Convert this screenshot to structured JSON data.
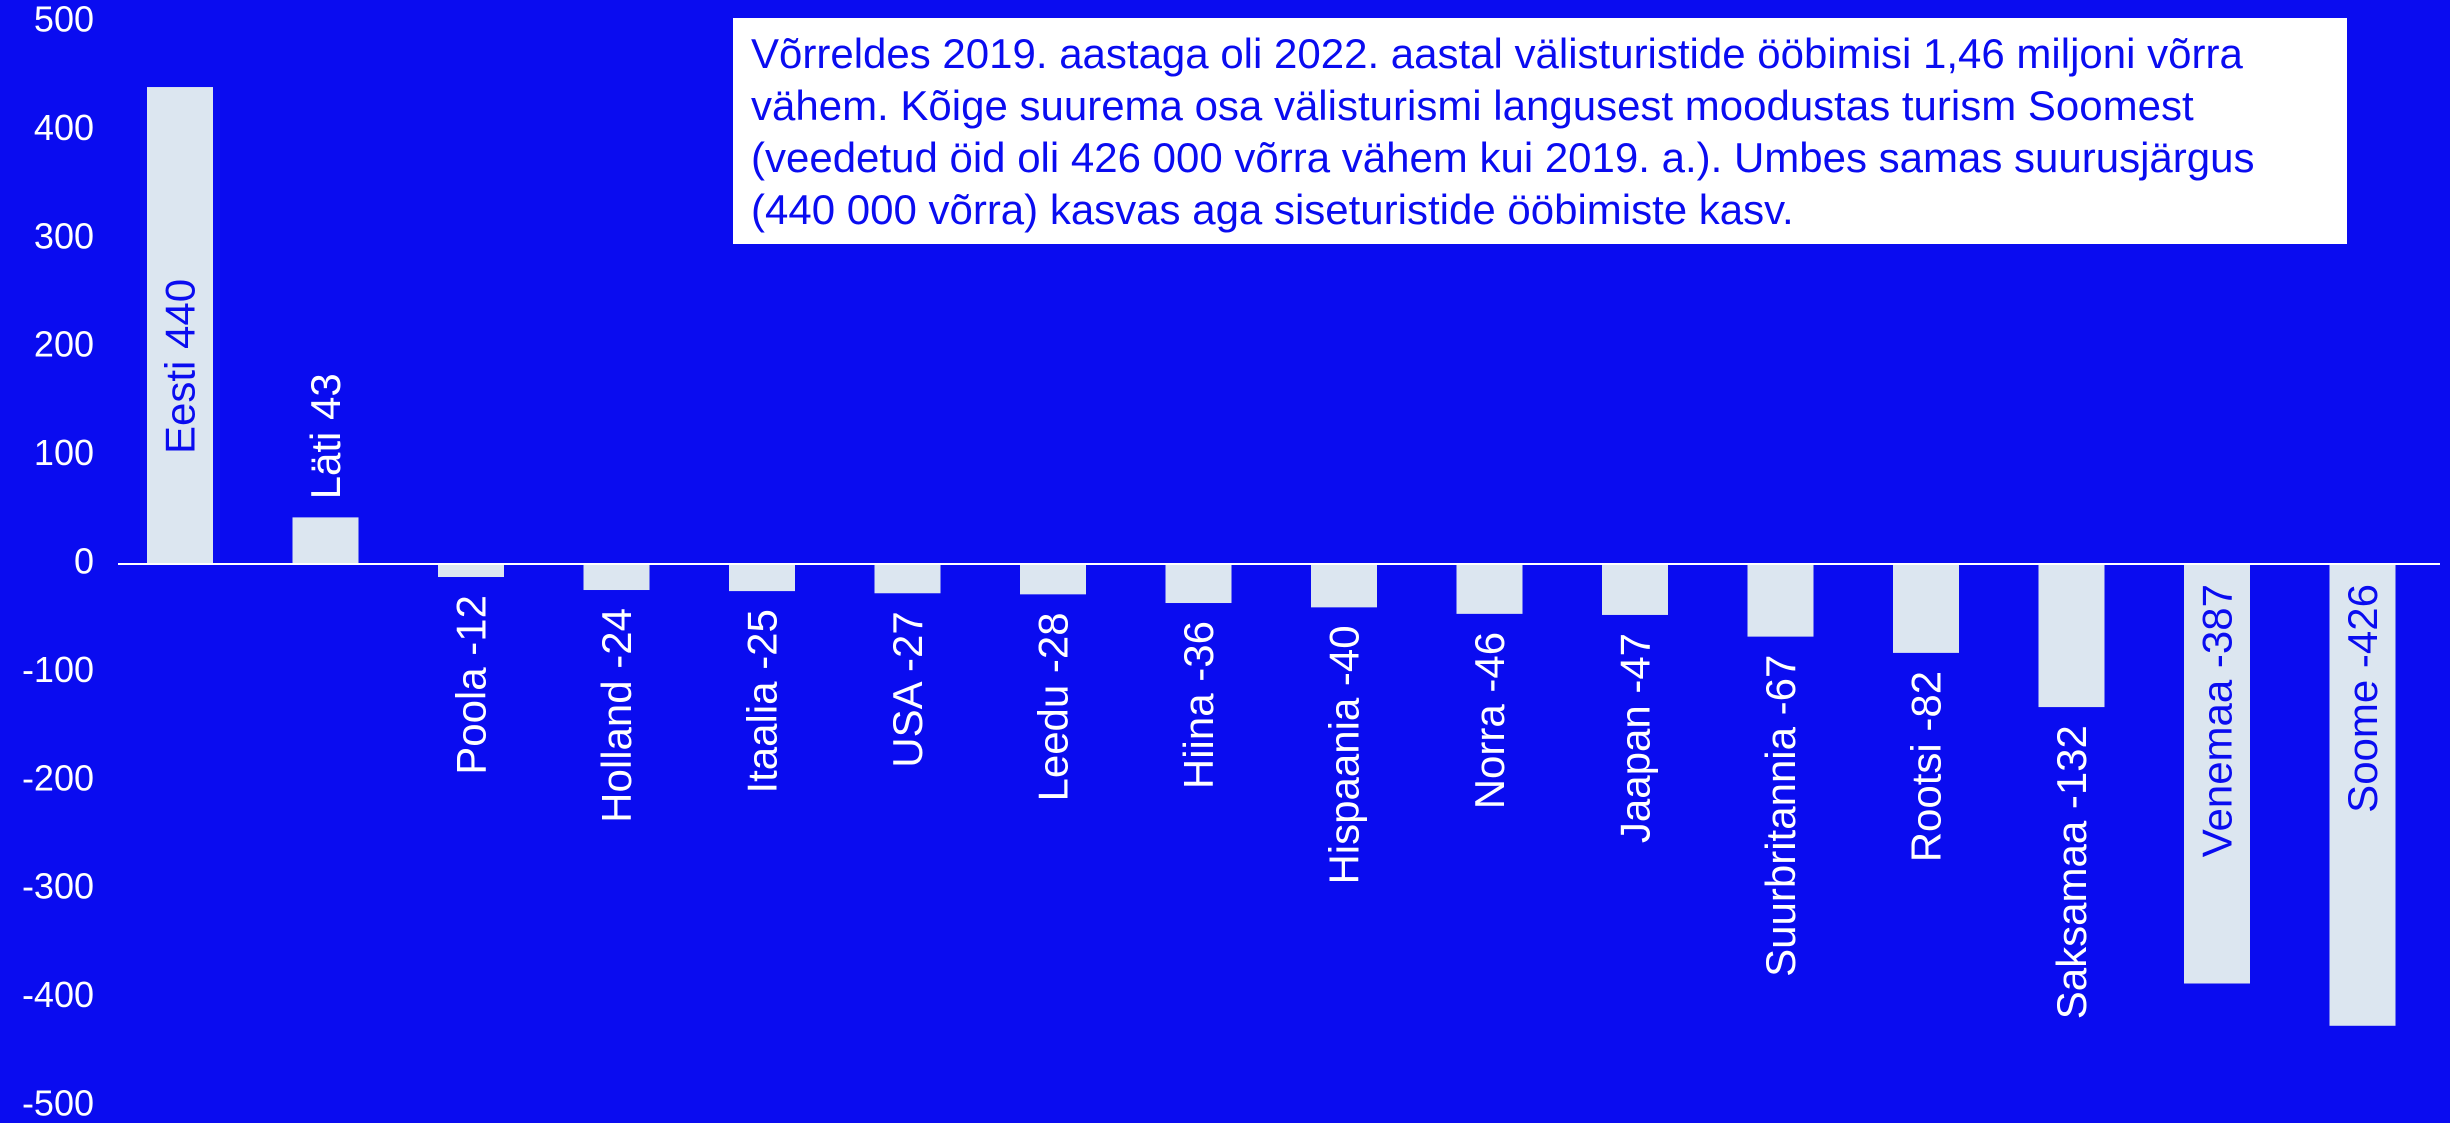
{
  "colors": {
    "background": "#0A0CF0",
    "bar": "#DCE6F0",
    "text": "#FFFFFF",
    "label_inside": "#0A0CF0"
  },
  "annotation": "Võrreldes 2019. aastaga oli 2022. aastal välisturistide ööbimisi 1,46 miljoni võrra vähem. Kõige suurema osa välisturismi langusest moodustas turism Soomest (veedetud öid oli 426 000 võrra vähem kui 2019. a.). Umbes samas suurusjärgus (440 000 võrra) kasvas aga siseturistide ööbimiste kasv.",
  "chart_data": {
    "type": "bar",
    "title": "",
    "xlabel": "",
    "ylabel": "",
    "ylim": [
      -500,
      500
    ],
    "yticks": [
      500,
      400,
      300,
      200,
      100,
      0,
      -100,
      -200,
      -300,
      -400,
      -500
    ],
    "grid": false,
    "categories": [
      "Eesti",
      "Läti",
      "Poola",
      "Holland",
      "Itaalia",
      "USA",
      "Leedu",
      "Hiina",
      "Hispaania",
      "Norra",
      "Jaapan",
      "Suurbritannia",
      "Rootsi",
      "Saksamaa",
      "Venemaa",
      "Soome"
    ],
    "values": [
      440,
      43,
      -12,
      -24,
      -25,
      -27,
      -28,
      -36,
      -40,
      -46,
      -47,
      -67,
      -82,
      -132,
      -387,
      -426
    ],
    "data_labels": [
      "Eesti 440",
      "Läti 43",
      "Poola -12",
      "Holland -24",
      "Itaalia -25",
      "USA -27",
      "Leedu -28",
      "Hiina -36",
      "Hispaania -40",
      "Norra -46",
      "Jaapan -47",
      "Suurbritannia -67",
      "Rootsi -82",
      "Saksamaa -132",
      "Venemaa -387",
      "Soome -426"
    ]
  }
}
